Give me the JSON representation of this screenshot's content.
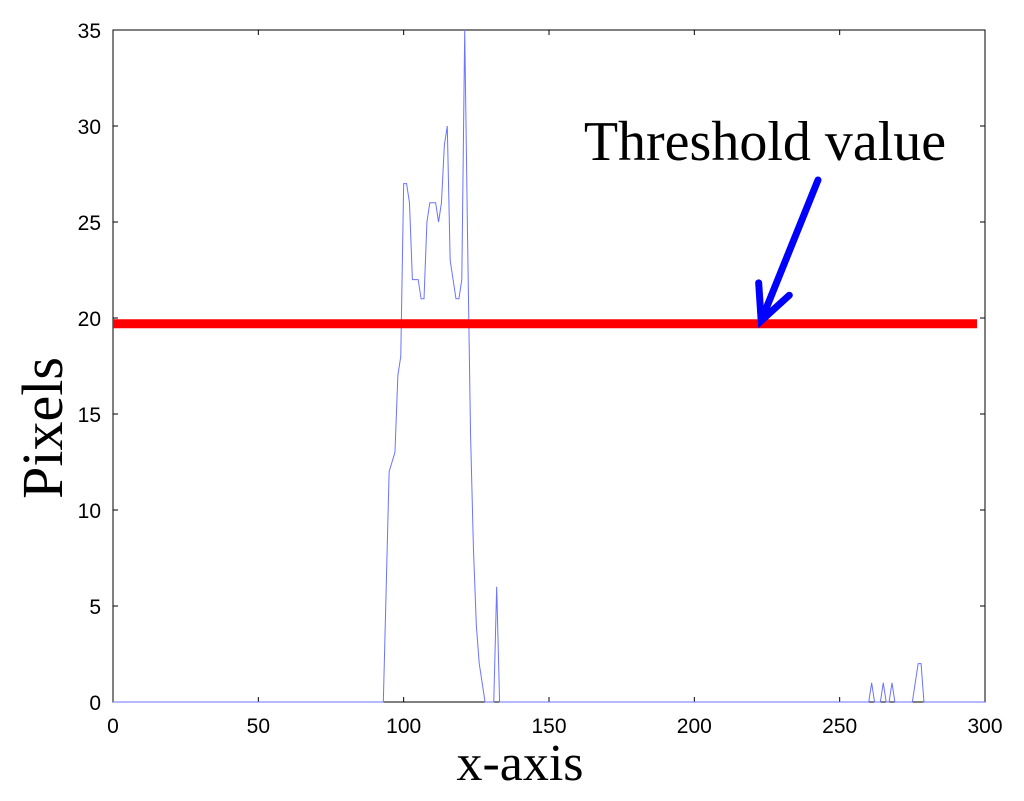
{
  "chart_data": {
    "type": "line",
    "title": "",
    "xlabel": "x-axis",
    "ylabel": "Pixels",
    "xlim": [
      0,
      300
    ],
    "ylim": [
      0,
      35
    ],
    "xticks": [
      0,
      50,
      100,
      150,
      200,
      250,
      300
    ],
    "yticks": [
      0,
      5,
      10,
      15,
      20,
      25,
      30,
      35
    ],
    "grid": false,
    "series": [
      {
        "color": "#6b73ff",
        "x": [
          0,
          93,
          95,
          97,
          98,
          99,
          100,
          101,
          102,
          103,
          105,
          106,
          107,
          108,
          109,
          110,
          111,
          112,
          113,
          114,
          115,
          116,
          117,
          118,
          119,
          120,
          121,
          122,
          123,
          124,
          125,
          126,
          127,
          128,
          129,
          130,
          131,
          132,
          133,
          134,
          135,
          136,
          137,
          259,
          260,
          261,
          262,
          263,
          264,
          265,
          266,
          267,
          268,
          269,
          275,
          276,
          277,
          278,
          279,
          300
        ],
        "y": [
          0,
          0,
          12,
          13,
          17,
          18,
          27,
          27,
          26,
          22,
          22,
          21,
          21,
          25,
          26,
          26,
          26,
          25,
          26,
          29,
          30,
          23,
          22,
          21,
          21,
          22,
          35,
          24,
          14,
          8,
          4,
          2,
          1,
          0,
          0,
          0,
          0,
          6,
          0,
          0,
          0,
          0,
          0,
          0,
          0,
          1,
          0,
          0,
          0,
          1,
          0,
          0,
          1,
          0,
          0,
          1,
          2,
          2,
          0,
          0
        ]
      }
    ],
    "threshold": {
      "value": 19.7,
      "color": "#ff0000"
    },
    "annotation": {
      "text": "Threshold value",
      "arrow_color": "#0000ff",
      "arrow_target": [
        223,
        19.7
      ]
    }
  }
}
